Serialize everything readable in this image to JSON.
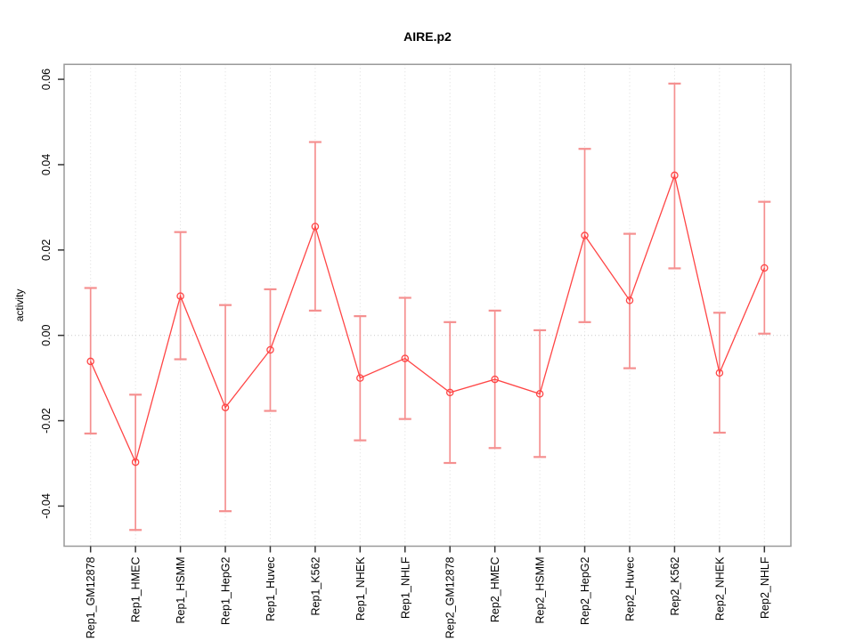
{
  "chart_data": {
    "type": "line",
    "title": "AIRE.p2",
    "xlabel": "",
    "ylabel": "activity",
    "legend": "none",
    "grid": "vertical dotted gridline at each category; dotted horizontal reference line at y=0",
    "categories": [
      "Rep1_GM12878",
      "Rep1_HMEC",
      "Rep1_HSMM",
      "Rep1_HepG2",
      "Rep1_Huvec",
      "Rep1_K562",
      "Rep1_NHEK",
      "Rep1_NHLF",
      "Rep2_GM12878",
      "Rep2_HMEC",
      "Rep2_HSMM",
      "Rep2_HepG2",
      "Rep2_Huvec",
      "Rep2_K562",
      "Rep2_NHEK",
      "Rep2_NHLF"
    ],
    "series": [
      {
        "name": "activity",
        "values": [
          -0.0061,
          -0.0297,
          0.0092,
          -0.0169,
          -0.0034,
          0.0255,
          -0.01,
          -0.0054,
          -0.0134,
          -0.0103,
          -0.0137,
          0.0234,
          0.0082,
          0.0375,
          -0.0088,
          0.0158
        ],
        "error_high": [
          0.0111,
          -0.0139,
          0.0242,
          0.0071,
          0.0108,
          0.0453,
          0.0045,
          0.0088,
          0.0031,
          0.0058,
          0.0012,
          0.0437,
          0.0238,
          0.059,
          0.0053,
          0.0313
        ],
        "error_low": [
          -0.023,
          -0.0456,
          -0.0056,
          -0.0412,
          -0.0177,
          0.0058,
          -0.0246,
          -0.0196,
          -0.0299,
          -0.0264,
          -0.0285,
          0.0031,
          -0.0077,
          0.0157,
          -0.0228,
          0.0004
        ]
      }
    ],
    "yticks": [
      -0.04,
      -0.02,
      0,
      0.02,
      0.04,
      0.06
    ],
    "ytick_labels": [
      "-0.04",
      "-0.02",
      "0.00",
      "0.02",
      "0.04",
      "0.06"
    ],
    "ylim": [
      -0.0494,
      0.0635
    ],
    "zero_line": 0,
    "colors": {
      "line": "#ff4545",
      "point": "#ff4545",
      "error_bar": "#f59090",
      "gridline": "#dcdcdc",
      "zero_line": "#c9c9c9",
      "frame": "#999999",
      "axis": "#333333",
      "text": "#000000"
    }
  }
}
